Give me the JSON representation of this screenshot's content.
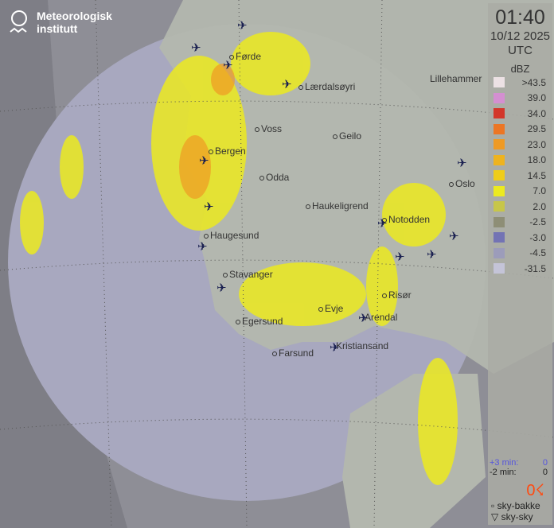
{
  "brand": {
    "line1": "Meteorologisk",
    "line2": "institutt"
  },
  "header": {
    "time": "01:40",
    "date": "10/12 2025",
    "timezone": "UTC"
  },
  "legend": {
    "unit": "dBZ",
    "items": [
      {
        "label": ">43.5",
        "color": "#ece1e4"
      },
      {
        "label": "39.0",
        "color": "#d48fd1"
      },
      {
        "label": "34.0",
        "color": "#d3362a"
      },
      {
        "label": "29.5",
        "color": "#ec7625"
      },
      {
        "label": "23.0",
        "color": "#ef9a24"
      },
      {
        "label": "18.0",
        "color": "#eeb31f"
      },
      {
        "label": "14.5",
        "color": "#efcd19"
      },
      {
        "label": "7.0",
        "color": "#ecea1f"
      },
      {
        "label": "2.0",
        "color": "#c7c649"
      },
      {
        "label": "-2.5",
        "color": "#8e8e76"
      },
      {
        "label": "-3.0",
        "color": "#7373b4"
      },
      {
        "label": "-4.5",
        "color": "#9c9cba"
      },
      {
        "label": "-31.5",
        "color": "#c4c4d8"
      }
    ]
  },
  "lightning": {
    "plus3_label": "+3 min:",
    "plus3_value": "0",
    "minus2_label": "-2 min:",
    "minus2_value": "0",
    "count": "0",
    "cloud_ground": "sky-bakke",
    "cloud_cloud": "sky-sky"
  },
  "cities": [
    "Førde",
    "Lærdalsøyri",
    "Lillehammer",
    "Voss",
    "Geilo",
    "Bergen",
    "Odda",
    "Oslo",
    "Haukeligrend",
    "Notodden",
    "Haugesund",
    "Stavanger",
    "Risør",
    "Evje",
    "Arendal",
    "Egersund",
    "Farsund",
    "Kristiansand"
  ],
  "colors": {
    "sea": "#8e8e96",
    "radar_coverage": "#a8a8bf",
    "land": "#b3b7ae",
    "rain": "#ecea1f"
  }
}
